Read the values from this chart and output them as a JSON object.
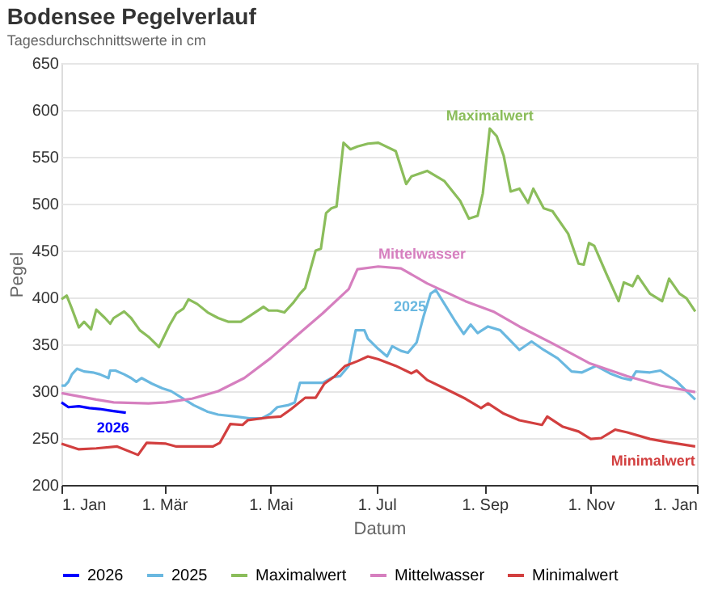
{
  "chart_data": {
    "type": "line",
    "title": "Bodensee Pegelverlauf",
    "subtitle": "Tagesdurchschnittswerte in cm",
    "xlabel": "Datum",
    "ylabel": "Pegel",
    "xlim": [
      "2025-01-01",
      "2026-01-01"
    ],
    "xticks": [
      {
        "value": "2025-01-01",
        "label": "1. Jan"
      },
      {
        "value": "2025-03-01",
        "label": "1. Mär"
      },
      {
        "value": "2025-05-01",
        "label": "1. Mai"
      },
      {
        "value": "2025-07-01",
        "label": "1. Jul"
      },
      {
        "value": "2025-09-01",
        "label": "1. Sep"
      },
      {
        "value": "2025-11-01",
        "label": "1. Nov"
      },
      {
        "value": "2026-01-01",
        "label": "1. Jan"
      }
    ],
    "ylim": [
      200,
      650
    ],
    "yticks": [
      200,
      250,
      300,
      350,
      400,
      450,
      500,
      550,
      600,
      650
    ],
    "grid": "y",
    "legend": "bottom",
    "marker": "none",
    "line_style": "solid",
    "series": [
      {
        "name": "2026",
        "color": "#0000ff",
        "x": [
          "2025-01-01",
          "2025-01-05",
          "2025-01-11",
          "2025-01-17",
          "2025-01-23",
          "2025-01-30",
          "2025-02-07"
        ],
        "values": [
          288,
          283,
          284,
          282,
          281,
          279,
          277
        ]
      },
      {
        "name": "2025",
        "color": "#6ab8e0",
        "x": [
          "2025-01-01",
          "2025-01-03",
          "2025-01-05",
          "2025-01-07",
          "2025-01-10",
          "2025-01-14",
          "2025-01-19",
          "2025-01-23",
          "2025-01-28",
          "2025-01-29",
          "2025-02-01",
          "2025-02-06",
          "2025-02-10",
          "2025-02-13",
          "2025-02-16",
          "2025-02-22",
          "2025-02-28",
          "2025-03-05",
          "2025-03-12",
          "2025-03-18",
          "2025-03-26",
          "2025-04-01",
          "2025-04-11",
          "2025-04-19",
          "2025-04-26",
          "2025-05-01",
          "2025-05-05",
          "2025-05-11",
          "2025-05-15",
          "2025-05-18",
          "2025-05-23",
          "2025-05-31",
          "2025-06-06",
          "2025-06-10",
          "2025-06-15",
          "2025-06-19",
          "2025-06-24",
          "2025-06-26",
          "2025-07-02",
          "2025-07-07",
          "2025-07-10",
          "2025-07-15",
          "2025-07-19",
          "2025-07-24",
          "2025-07-28",
          "2025-08-01",
          "2025-08-04",
          "2025-08-09",
          "2025-08-15",
          "2025-08-20",
          "2025-08-24",
          "2025-08-28",
          "2025-09-03",
          "2025-09-10",
          "2025-09-21",
          "2025-09-28",
          "2025-10-05",
          "2025-10-13",
          "2025-10-21",
          "2025-10-27",
          "2025-11-04",
          "2025-11-12",
          "2025-11-19",
          "2025-11-24",
          "2025-11-27",
          "2025-12-05",
          "2025-12-11",
          "2025-12-20",
          "2025-12-31"
        ],
        "values": [
          306,
          306,
          310,
          318,
          324,
          321,
          320,
          318,
          314,
          322,
          322,
          318,
          314,
          310,
          314,
          308,
          303,
          300,
          292,
          285,
          278,
          275,
          273,
          271,
          271,
          276,
          283,
          285,
          288,
          309,
          309,
          309,
          315,
          316,
          327,
          365,
          365,
          356,
          345,
          337,
          348,
          343,
          341,
          352,
          380,
          404,
          408,
          393,
          375,
          361,
          371,
          362,
          369,
          365,
          344,
          353,
          344,
          335,
          321,
          320,
          327,
          319,
          314,
          312,
          321,
          320,
          322,
          311,
          291
        ]
      },
      {
        "name": "Maximalwert",
        "color": "#8bbd5b",
        "x": [
          "2025-01-01",
          "2025-01-04",
          "2025-01-07",
          "2025-01-11",
          "2025-01-14",
          "2025-01-18",
          "2025-01-21",
          "2025-01-26",
          "2025-01-29",
          "2025-01-31",
          "2025-02-06",
          "2025-02-10",
          "2025-02-15",
          "2025-02-20",
          "2025-02-26",
          "2025-03-04",
          "2025-03-08",
          "2025-03-12",
          "2025-03-15",
          "2025-03-20",
          "2025-03-26",
          "2025-04-01",
          "2025-04-07",
          "2025-04-14",
          "2025-04-19",
          "2025-04-23",
          "2025-04-27",
          "2025-04-30",
          "2025-05-05",
          "2025-05-09",
          "2025-05-14",
          "2025-05-18",
          "2025-05-21",
          "2025-05-24",
          "2025-05-27",
          "2025-05-30",
          "2025-06-02",
          "2025-06-05",
          "2025-06-08",
          "2025-06-12",
          "2025-06-16",
          "2025-06-20",
          "2025-06-26",
          "2025-07-02",
          "2025-07-12",
          "2025-07-18",
          "2025-07-21",
          "2025-07-30",
          "2025-08-09",
          "2025-08-18",
          "2025-08-23",
          "2025-08-28",
          "2025-08-31",
          "2025-09-04",
          "2025-09-08",
          "2025-09-12",
          "2025-09-16",
          "2025-09-21",
          "2025-09-26",
          "2025-09-29",
          "2025-10-05",
          "2025-10-10",
          "2025-10-19",
          "2025-10-25",
          "2025-10-28",
          "2025-10-31",
          "2025-11-03",
          "2025-11-10",
          "2025-11-17",
          "2025-11-20",
          "2025-11-25",
          "2025-11-28",
          "2025-12-05",
          "2025-12-12",
          "2025-12-16",
          "2025-12-22",
          "2025-12-26",
          "2025-12-31"
        ],
        "values": [
          398,
          402,
          388,
          368,
          374,
          366,
          387,
          378,
          372,
          378,
          385,
          378,
          365,
          358,
          347,
          370,
          383,
          388,
          398,
          393,
          384,
          378,
          374,
          374,
          380,
          385,
          390,
          386,
          386,
          384,
          394,
          404,
          410,
          430,
          450,
          452,
          490,
          495,
          497,
          565,
          558,
          561,
          564,
          565,
          556,
          521,
          529,
          535,
          524,
          503,
          484,
          487,
          511,
          580,
          572,
          551,
          513,
          516,
          501,
          516,
          495,
          492,
          468,
          436,
          435,
          458,
          455,
          425,
          396,
          416,
          412,
          423,
          404,
          396,
          420,
          404,
          399,
          385
        ]
      },
      {
        "name": "Mittelwasser",
        "color": "#d67fbf",
        "x": [
          "2025-01-01",
          "2025-01-21",
          "2025-01-31",
          "2025-02-20",
          "2025-03-02",
          "2025-03-17",
          "2025-04-01",
          "2025-04-16",
          "2025-05-01",
          "2025-05-16",
          "2025-05-31",
          "2025-06-15",
          "2025-06-20",
          "2025-07-02",
          "2025-07-15",
          "2025-07-30",
          "2025-08-21",
          "2025-09-06",
          "2025-09-21",
          "2025-10-10",
          "2025-10-31",
          "2025-11-22",
          "2025-12-11",
          "2025-12-31"
        ],
        "values": [
          298,
          291,
          288,
          287,
          288,
          292,
          300,
          314,
          335,
          359,
          383,
          409,
          430,
          433,
          431,
          415,
          396,
          385,
          369,
          351,
          330,
          316,
          306,
          299
        ]
      },
      {
        "name": "Minimalwert",
        "color": "#d23f3f",
        "x": [
          "2025-01-01",
          "2025-01-11",
          "2025-01-21",
          "2025-02-02",
          "2025-02-14",
          "2025-02-19",
          "2025-03-02",
          "2025-03-08",
          "2025-03-29",
          "2025-04-02",
          "2025-04-08",
          "2025-04-15",
          "2025-04-18",
          "2025-04-30",
          "2025-05-07",
          "2025-05-13",
          "2025-05-21",
          "2025-05-27",
          "2025-06-01",
          "2025-06-07",
          "2025-06-13",
          "2025-06-20",
          "2025-06-26",
          "2025-07-02",
          "2025-07-12",
          "2025-07-21",
          "2025-07-24",
          "2025-07-30",
          "2025-08-09",
          "2025-08-21",
          "2025-08-30",
          "2025-09-03",
          "2025-09-12",
          "2025-09-21",
          "2025-10-04",
          "2025-10-07",
          "2025-10-16",
          "2025-10-25",
          "2025-11-01",
          "2025-11-07",
          "2025-11-15",
          "2025-11-22",
          "2025-12-05",
          "2025-12-14",
          "2025-12-31"
        ],
        "values": [
          244,
          238,
          239,
          241,
          232,
          245,
          244,
          241,
          241,
          245,
          265,
          264,
          269,
          272,
          273,
          281,
          293,
          293,
          308,
          316,
          327,
          332,
          337,
          334,
          327,
          319,
          322,
          312,
          303,
          292,
          282,
          287,
          276,
          269,
          264,
          273,
          262,
          257,
          249,
          250,
          259,
          256,
          249,
          246,
          241
        ]
      }
    ]
  }
}
